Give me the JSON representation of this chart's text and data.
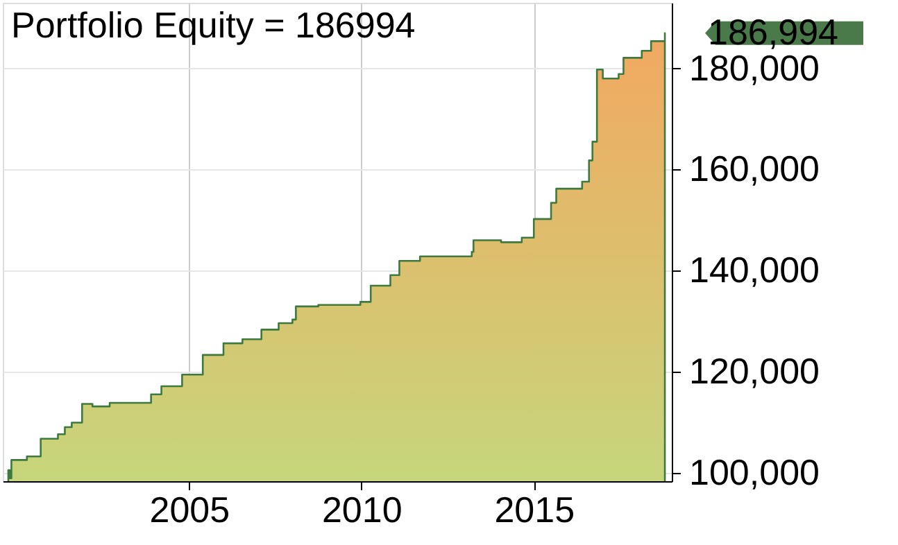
{
  "chart_data": {
    "type": "area",
    "title": "Portfolio Equity = 186994",
    "series": [
      {
        "color": "#3e7a3e",
        "x": [
          1999.76,
          1999.8,
          1999.85,
          2000.3,
          2000.7,
          2001.2,
          2001.4,
          2001.6,
          2001.9,
          2002.2,
          2002.7,
          2003.9,
          2004.2,
          2004.8,
          2005.4,
          2006.0,
          2006.55,
          2007.1,
          2007.6,
          2008.0,
          2008.1,
          2008.75,
          2009.97,
          2010.27,
          2010.84,
          2011.1,
          2011.7,
          2013.2,
          2013.25,
          2014.05,
          2014.65,
          2015.0,
          2015.5,
          2015.65,
          2016.4,
          2016.6,
          2016.7,
          2016.83,
          2017.0,
          2017.46,
          2017.6,
          2018.13,
          2018.4,
          2018.8
        ],
        "values": [
          100500,
          98900,
          102500,
          103200,
          106700,
          107600,
          109000,
          109900,
          113600,
          113100,
          113800,
          115500,
          117100,
          119400,
          123300,
          125600,
          126400,
          128300,
          129600,
          130300,
          132900,
          133200,
          133800,
          137000,
          139100,
          141900,
          142800,
          143700,
          146000,
          145600,
          146500,
          150200,
          153400,
          156200,
          157600,
          161800,
          165500,
          179800,
          178000,
          178900,
          182100,
          183500,
          185400,
          186994
        ]
      }
    ],
    "xlim": [
      1999.6,
      2019.0
    ],
    "xticks": [
      2005,
      2010,
      2015
    ],
    "ylim": [
      98300,
      193000
    ],
    "yticks": [
      {
        "value": 100000,
        "label": "100,000"
      },
      {
        "value": 120000,
        "label": "120,000"
      },
      {
        "value": 140000,
        "label": "140,000"
      },
      {
        "value": 160000,
        "label": "160,000"
      },
      {
        "value": 180000,
        "label": "180,000"
      }
    ],
    "annotations": [
      "186,994"
    ],
    "grid": true,
    "marker": "none"
  }
}
